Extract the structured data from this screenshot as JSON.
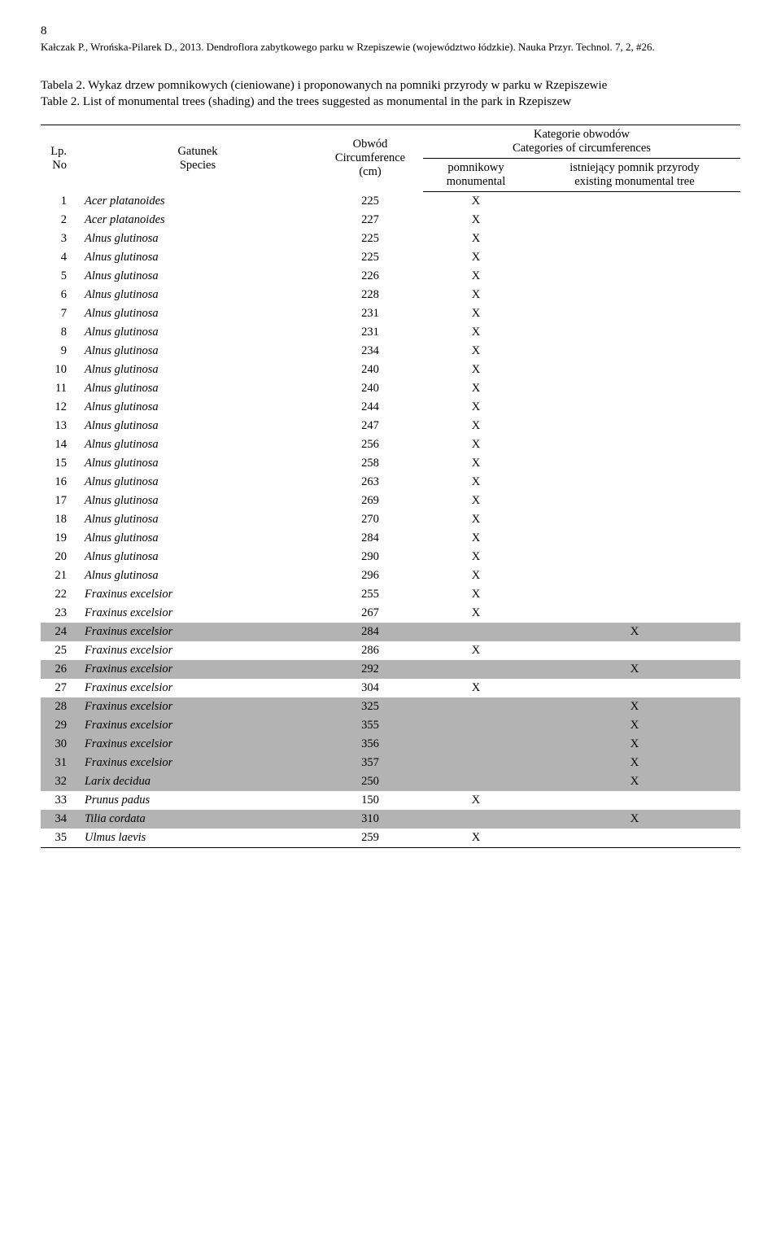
{
  "page_number": "8",
  "citation": "Kałczak P., Wrońska-Pilarek D., 2013. Dendroflora zabytkowego parku w Rzepiszewie (województwo łódzkie). Nauka Przyr. Technol. 7, 2, #26.",
  "caption_pl_label": "Tabela 2.",
  "caption_pl_text": " Wykaz drzew pomnikowych (cieniowane) i proponowanych na pomniki przyrody w parku w Rzepiszewie",
  "caption_en_label": "Table 2.",
  "caption_en_text": " List of monumental trees (shading) and the trees suggested as monumental in the park in Rzepiszew",
  "headers": {
    "lp": "Lp.\nNo",
    "species": "Gatunek\nSpecies",
    "circumference": "Obwód\nCircumference\n(cm)",
    "categories": "Kategorie obwodów\nCategories of circumferences",
    "monumental": "pomnikowy\nmonumental",
    "existing": "istniejący pomnik przyrody\nexisting monumental tree"
  },
  "rows": [
    {
      "lp": "1",
      "species": "Acer platanoides",
      "circ": "225",
      "mon": "X",
      "exist": "",
      "shaded": false
    },
    {
      "lp": "2",
      "species": "Acer platanoides",
      "circ": "227",
      "mon": "X",
      "exist": "",
      "shaded": false
    },
    {
      "lp": "3",
      "species": "Alnus glutinosa",
      "circ": "225",
      "mon": "X",
      "exist": "",
      "shaded": false
    },
    {
      "lp": "4",
      "species": "Alnus glutinosa",
      "circ": "225",
      "mon": "X",
      "exist": "",
      "shaded": false
    },
    {
      "lp": "5",
      "species": "Alnus glutinosa",
      "circ": "226",
      "mon": "X",
      "exist": "",
      "shaded": false
    },
    {
      "lp": "6",
      "species": "Alnus glutinosa",
      "circ": "228",
      "mon": "X",
      "exist": "",
      "shaded": false
    },
    {
      "lp": "7",
      "species": "Alnus glutinosa",
      "circ": "231",
      "mon": "X",
      "exist": "",
      "shaded": false
    },
    {
      "lp": "8",
      "species": "Alnus glutinosa",
      "circ": "231",
      "mon": "X",
      "exist": "",
      "shaded": false
    },
    {
      "lp": "9",
      "species": "Alnus glutinosa",
      "circ": "234",
      "mon": "X",
      "exist": "",
      "shaded": false
    },
    {
      "lp": "10",
      "species": "Alnus glutinosa",
      "circ": "240",
      "mon": "X",
      "exist": "",
      "shaded": false
    },
    {
      "lp": "11",
      "species": "Alnus glutinosa",
      "circ": "240",
      "mon": "X",
      "exist": "",
      "shaded": false
    },
    {
      "lp": "12",
      "species": "Alnus glutinosa",
      "circ": "244",
      "mon": "X",
      "exist": "",
      "shaded": false
    },
    {
      "lp": "13",
      "species": "Alnus glutinosa",
      "circ": "247",
      "mon": "X",
      "exist": "",
      "shaded": false
    },
    {
      "lp": "14",
      "species": "Alnus glutinosa",
      "circ": "256",
      "mon": "X",
      "exist": "",
      "shaded": false
    },
    {
      "lp": "15",
      "species": "Alnus glutinosa",
      "circ": "258",
      "mon": "X",
      "exist": "",
      "shaded": false
    },
    {
      "lp": "16",
      "species": "Alnus glutinosa",
      "circ": "263",
      "mon": "X",
      "exist": "",
      "shaded": false
    },
    {
      "lp": "17",
      "species": "Alnus glutinosa",
      "circ": "269",
      "mon": "X",
      "exist": "",
      "shaded": false
    },
    {
      "lp": "18",
      "species": "Alnus glutinosa",
      "circ": "270",
      "mon": "X",
      "exist": "",
      "shaded": false
    },
    {
      "lp": "19",
      "species": "Alnus glutinosa",
      "circ": "284",
      "mon": "X",
      "exist": "",
      "shaded": false
    },
    {
      "lp": "20",
      "species": "Alnus glutinosa",
      "circ": "290",
      "mon": "X",
      "exist": "",
      "shaded": false
    },
    {
      "lp": "21",
      "species": "Alnus glutinosa",
      "circ": "296",
      "mon": "X",
      "exist": "",
      "shaded": false
    },
    {
      "lp": "22",
      "species": "Fraxinus excelsior",
      "circ": "255",
      "mon": "X",
      "exist": "",
      "shaded": false
    },
    {
      "lp": "23",
      "species": "Fraxinus excelsior",
      "circ": "267",
      "mon": "X",
      "exist": "",
      "shaded": false
    },
    {
      "lp": "24",
      "species": "Fraxinus excelsior",
      "circ": "284",
      "mon": "",
      "exist": "X",
      "shaded": true
    },
    {
      "lp": "25",
      "species": "Fraxinus excelsior",
      "circ": "286",
      "mon": "X",
      "exist": "",
      "shaded": false
    },
    {
      "lp": "26",
      "species": "Fraxinus excelsior",
      "circ": "292",
      "mon": "",
      "exist": "X",
      "shaded": true
    },
    {
      "lp": "27",
      "species": "Fraxinus excelsior",
      "circ": "304",
      "mon": "X",
      "exist": "",
      "shaded": false
    },
    {
      "lp": "28",
      "species": "Fraxinus excelsior",
      "circ": "325",
      "mon": "",
      "exist": "X",
      "shaded": true
    },
    {
      "lp": "29",
      "species": "Fraxinus excelsior",
      "circ": "355",
      "mon": "",
      "exist": "X",
      "shaded": true
    },
    {
      "lp": "30",
      "species": "Fraxinus excelsior",
      "circ": "356",
      "mon": "",
      "exist": "X",
      "shaded": true
    },
    {
      "lp": "31",
      "species": "Fraxinus excelsior",
      "circ": "357",
      "mon": "",
      "exist": "X",
      "shaded": true
    },
    {
      "lp": "32",
      "species": "Larix decidua",
      "circ": "250",
      "mon": "",
      "exist": "X",
      "shaded": true
    },
    {
      "lp": "33",
      "species": "Prunus padus",
      "circ": "150",
      "mon": "X",
      "exist": "",
      "shaded": false
    },
    {
      "lp": "34",
      "species": "Tilia cordata",
      "circ": "310",
      "mon": "",
      "exist": "X",
      "shaded": true
    },
    {
      "lp": "35",
      "species": "Ulmus laevis",
      "circ": "259",
      "mon": "X",
      "exist": "",
      "shaded": false
    }
  ],
  "shaded_color": "#b3b3b3",
  "background_color": "#ffffff",
  "text_color": "#000000"
}
